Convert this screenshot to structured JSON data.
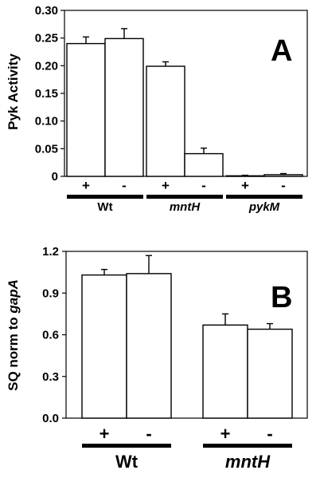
{
  "chart_data": [
    {
      "panel": "A",
      "type": "bar",
      "ylabel": "Pyk Activity",
      "ylim": [
        0,
        0.3
      ],
      "yticks": [
        "0",
        "0.05",
        "0.10",
        "0.15",
        "0.20",
        "0.25",
        "0.30"
      ],
      "groups": [
        {
          "name": "Wt",
          "italic": false
        },
        {
          "name": "mntH",
          "italic": true
        },
        {
          "name": "pykM",
          "italic": true
        }
      ],
      "conditions": [
        "+",
        "-",
        "+",
        "-",
        "+",
        "-"
      ],
      "values": [
        0.24,
        0.249,
        0.199,
        0.041,
        0.001,
        0.003
      ],
      "errors": [
        0.012,
        0.018,
        0.008,
        0.01,
        0.001,
        0.002
      ],
      "grid": false
    },
    {
      "panel": "B",
      "type": "bar",
      "ylabel_prefix": "SQ norm to ",
      "ylabel_italic": "gapA",
      "ylim": [
        0,
        1.2
      ],
      "yticks": [
        "0.0",
        "0.3",
        "0.6",
        "0.9",
        "1.2"
      ],
      "groups": [
        {
          "name": "Wt",
          "italic": false
        },
        {
          "name": "mntH",
          "italic": true
        }
      ],
      "conditions": [
        "+",
        "-",
        "+",
        "-"
      ],
      "values": [
        1.03,
        1.04,
        0.67,
        0.64
      ],
      "errors": [
        0.04,
        0.13,
        0.08,
        0.04
      ],
      "grid": false
    }
  ],
  "colors": {
    "bar_fill": "#ffffff",
    "stroke": "#000000"
  }
}
